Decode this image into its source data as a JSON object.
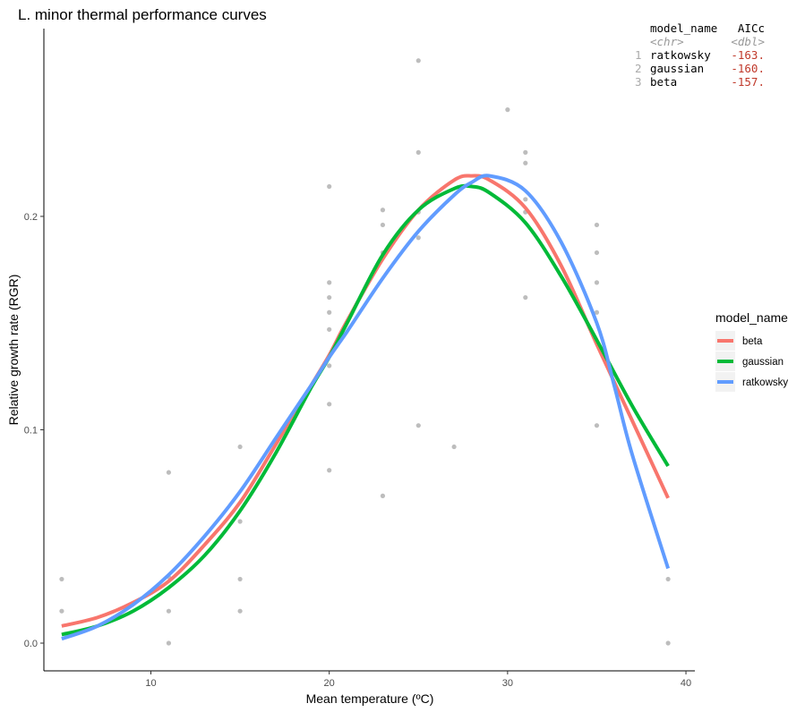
{
  "chart_data": {
    "type": "line",
    "title": "L. minor thermal performance curves",
    "xlabel": "Mean temperature (ºC)",
    "ylabel": "Relative growth rate (RGR)",
    "xlim": [
      4,
      40.5
    ],
    "ylim": [
      -0.013,
      0.288
    ],
    "x_ticks": [
      10,
      20,
      30,
      40
    ],
    "x_tick_labels": [
      "10",
      "20",
      "30",
      "40"
    ],
    "y_ticks": [
      0,
      0.1,
      0.2
    ],
    "y_tick_labels": [
      "0.0",
      "0.1",
      "0.2"
    ],
    "grid": false,
    "legend": {
      "title": "model_name",
      "placement": "right",
      "entries": [
        {
          "label": "beta",
          "color": "#F8766D"
        },
        {
          "label": "gaussian",
          "color": "#00BA38"
        },
        {
          "label": "ratkowsky",
          "color": "#619CFF"
        }
      ]
    },
    "points": {
      "color": "#bdbdbd",
      "data": [
        [
          5,
          0.03
        ],
        [
          5,
          0.015
        ],
        [
          11,
          0.08
        ],
        [
          11,
          0.031
        ],
        [
          11,
          0.015
        ],
        [
          11,
          0.0
        ],
        [
          15,
          0.092
        ],
        [
          15,
          0.057
        ],
        [
          15,
          0.03
        ],
        [
          15,
          0.015
        ],
        [
          20,
          0.214
        ],
        [
          20,
          0.169
        ],
        [
          20,
          0.162
        ],
        [
          20,
          0.155
        ],
        [
          20,
          0.147
        ],
        [
          20,
          0.13
        ],
        [
          20,
          0.112
        ],
        [
          20,
          0.081
        ],
        [
          23,
          0.203
        ],
        [
          23,
          0.196
        ],
        [
          23,
          0.183
        ],
        [
          23,
          0.069
        ],
        [
          25,
          0.273
        ],
        [
          25,
          0.23
        ],
        [
          25,
          0.202
        ],
        [
          25,
          0.19
        ],
        [
          25,
          0.102
        ],
        [
          27,
          0.092
        ],
        [
          30,
          0.25
        ],
        [
          31,
          0.23
        ],
        [
          31,
          0.225
        ],
        [
          31,
          0.208
        ],
        [
          31,
          0.202
        ],
        [
          31,
          0.162
        ],
        [
          35,
          0.196
        ],
        [
          35,
          0.183
        ],
        [
          35,
          0.169
        ],
        [
          35,
          0.155
        ],
        [
          35,
          0.102
        ],
        [
          39,
          0.03
        ],
        [
          39,
          0.0
        ]
      ]
    },
    "series": [
      {
        "name": "beta",
        "color": "#F8766D",
        "x": [
          5,
          7,
          9,
          11,
          13,
          15,
          17,
          19,
          20,
          21,
          23,
          25,
          27,
          28,
          29,
          31,
          33,
          35,
          37,
          39
        ],
        "y": [
          0.008,
          0.012,
          0.019,
          0.029,
          0.046,
          0.066,
          0.093,
          0.121,
          0.135,
          0.151,
          0.18,
          0.203,
          0.217,
          0.219,
          0.217,
          0.204,
          0.177,
          0.14,
          0.104,
          0.068
        ]
      },
      {
        "name": "gaussian",
        "color": "#00BA38",
        "x": [
          5,
          7,
          9,
          11,
          13,
          15,
          17,
          19,
          20,
          21,
          23,
          25,
          27,
          28,
          29,
          31,
          33,
          35,
          37,
          39
        ],
        "y": [
          0.004,
          0.008,
          0.015,
          0.026,
          0.041,
          0.062,
          0.089,
          0.12,
          0.134,
          0.15,
          0.182,
          0.203,
          0.213,
          0.214,
          0.211,
          0.197,
          0.172,
          0.142,
          0.111,
          0.083
        ]
      },
      {
        "name": "ratkowsky",
        "color": "#619CFF",
        "x": [
          5,
          7,
          9,
          11,
          13,
          15,
          17,
          19,
          20,
          21,
          23,
          25,
          27,
          28,
          29,
          31,
          33,
          35,
          36,
          37,
          39
        ],
        "y": [
          0.002,
          0.008,
          0.018,
          0.032,
          0.05,
          0.071,
          0.096,
          0.121,
          0.134,
          0.146,
          0.171,
          0.193,
          0.21,
          0.216,
          0.219,
          0.212,
          0.188,
          0.15,
          0.12,
          0.088,
          0.035
        ]
      }
    ]
  },
  "table": {
    "headers": [
      "model_name",
      "AICc"
    ],
    "types": [
      "<chr>",
      "<dbl>"
    ],
    "rows": [
      {
        "index": "1",
        "model_name": "ratkowsky",
        "aicc": "-163."
      },
      {
        "index": "2",
        "model_name": "gaussian",
        "aicc": "-160."
      },
      {
        "index": "3",
        "model_name": "beta",
        "aicc": "-157."
      }
    ]
  }
}
